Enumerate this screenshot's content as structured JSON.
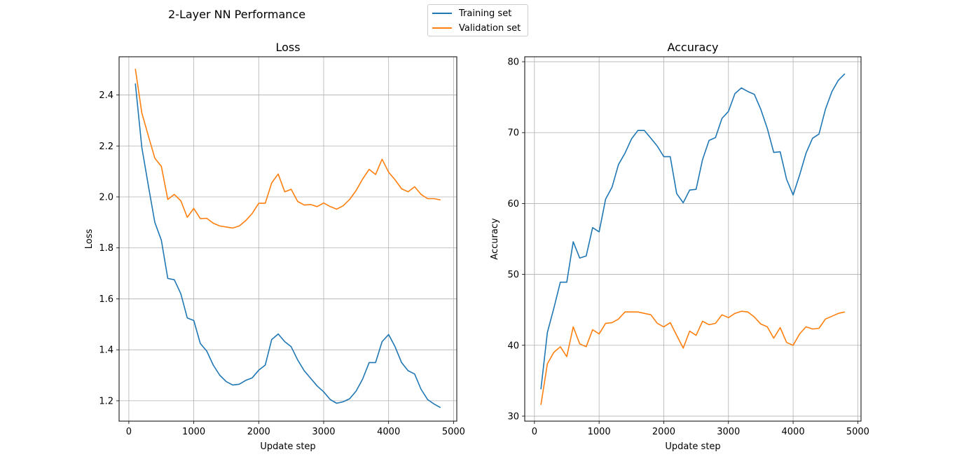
{
  "figure": {
    "suptitle": "2-Layer NN Performance"
  },
  "legend": {
    "items": [
      {
        "label": "Training set",
        "color": "#1f77b4"
      },
      {
        "label": "Validation set",
        "color": "#ff7f0e"
      }
    ]
  },
  "chart_data": [
    {
      "type": "line",
      "title": "Loss",
      "xlabel": "Update step",
      "ylabel": "Loss",
      "xlim": [
        -150,
        5050
      ],
      "ylim": [
        1.12,
        2.55
      ],
      "xticks": [
        0,
        1000,
        2000,
        3000,
        4000,
        5000
      ],
      "yticks": [
        1.2,
        1.4,
        1.6,
        1.8,
        2.0,
        2.2,
        2.4
      ],
      "ytick_decimals": 1,
      "grid": true,
      "x": [
        100,
        200,
        300,
        400,
        500,
        600,
        700,
        800,
        900,
        1000,
        1100,
        1200,
        1300,
        1400,
        1500,
        1600,
        1700,
        1800,
        1900,
        2000,
        2100,
        2200,
        2300,
        2400,
        2500,
        2600,
        2700,
        2800,
        2900,
        3000,
        3100,
        3200,
        3300,
        3400,
        3500,
        3600,
        3700,
        3800,
        3900,
        4000,
        4100,
        4200,
        4300,
        4400,
        4500,
        4600,
        4700,
        4800
      ],
      "series": [
        {
          "name": "Training set",
          "color": "#1f77b4",
          "values": [
            2.445,
            2.195,
            2.045,
            1.9,
            1.83,
            1.68,
            1.675,
            1.62,
            1.525,
            1.515,
            1.425,
            1.395,
            1.34,
            1.3,
            1.275,
            1.262,
            1.265,
            1.28,
            1.29,
            1.32,
            1.34,
            1.44,
            1.462,
            1.432,
            1.412,
            1.36,
            1.318,
            1.288,
            1.258,
            1.235,
            1.205,
            1.19,
            1.196,
            1.208,
            1.238,
            1.285,
            1.35,
            1.35,
            1.432,
            1.46,
            1.412,
            1.35,
            1.318,
            1.305,
            1.245,
            1.205,
            1.187,
            1.173
          ]
        },
        {
          "name": "Validation set",
          "color": "#ff7f0e",
          "values": [
            2.503,
            2.33,
            2.24,
            2.152,
            2.12,
            1.99,
            2.01,
            1.985,
            1.92,
            1.955,
            1.915,
            1.916,
            1.897,
            1.886,
            1.882,
            1.878,
            1.886,
            1.907,
            1.935,
            1.975,
            1.975,
            2.055,
            2.09,
            2.02,
            2.03,
            1.982,
            1.968,
            1.97,
            1.962,
            1.976,
            1.962,
            1.952,
            1.965,
            1.99,
            2.025,
            2.07,
            2.108,
            2.088,
            2.148,
            2.097,
            2.067,
            2.032,
            2.02,
            2.04,
            2.01,
            1.993,
            1.993,
            1.988
          ]
        }
      ]
    },
    {
      "type": "line",
      "title": "Accuracy",
      "xlabel": "Update step",
      "ylabel": "Accuracy",
      "xlim": [
        -150,
        5050
      ],
      "ylim": [
        29.3,
        80.7
      ],
      "xticks": [
        0,
        1000,
        2000,
        3000,
        4000,
        5000
      ],
      "yticks": [
        30,
        40,
        50,
        60,
        70,
        80
      ],
      "ytick_decimals": 0,
      "grid": true,
      "x": [
        100,
        200,
        300,
        400,
        500,
        600,
        700,
        800,
        900,
        1000,
        1100,
        1200,
        1300,
        1400,
        1500,
        1600,
        1700,
        1800,
        1900,
        2000,
        2100,
        2200,
        2300,
        2400,
        2500,
        2600,
        2700,
        2800,
        2900,
        3000,
        3100,
        3200,
        3300,
        3400,
        3500,
        3600,
        3700,
        3800,
        3900,
        4000,
        4100,
        4200,
        4300,
        4400,
        4500,
        4600,
        4700,
        4800
      ],
      "series": [
        {
          "name": "Training set",
          "color": "#1f77b4",
          "values": [
            33.8,
            41.8,
            45.2,
            48.9,
            48.9,
            54.6,
            52.3,
            52.6,
            56.6,
            56.0,
            60.6,
            62.3,
            65.5,
            67.1,
            69.1,
            70.3,
            70.3,
            69.2,
            68.1,
            66.6,
            66.6,
            61.4,
            60.1,
            61.9,
            62.0,
            66.2,
            68.9,
            69.3,
            72.0,
            73.0,
            75.5,
            76.3,
            75.8,
            75.4,
            73.3,
            70.6,
            67.2,
            67.3,
            63.4,
            61.2,
            64.0,
            67.1,
            69.2,
            69.8,
            73.3,
            75.8,
            77.4,
            78.3
          ]
        },
        {
          "name": "Validation set",
          "color": "#ff7f0e",
          "values": [
            31.6,
            37.4,
            39.0,
            39.8,
            38.4,
            42.6,
            40.2,
            39.8,
            42.2,
            41.6,
            43.1,
            43.2,
            43.7,
            44.7,
            44.7,
            44.7,
            44.5,
            44.3,
            43.1,
            42.6,
            43.2,
            41.4,
            39.6,
            42.0,
            41.4,
            43.4,
            42.9,
            43.1,
            44.3,
            43.9,
            44.5,
            44.8,
            44.7,
            44.0,
            43.0,
            42.6,
            41.0,
            42.5,
            40.4,
            40.0,
            41.6,
            42.6,
            42.3,
            42.4,
            43.7,
            44.1,
            44.5,
            44.7
          ]
        }
      ]
    }
  ]
}
